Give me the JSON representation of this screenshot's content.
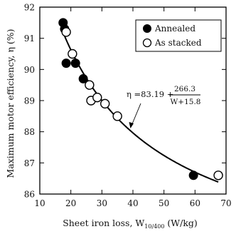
{
  "chart_data": {
    "type": "scatter",
    "xlabel": "Sheet iron loss, W",
    "xlabel_subscript": "10/400",
    "xlabel_unit": " (W/kg)",
    "ylabel": "Maximum motor efficiency, η (%)",
    "xlim": [
      10,
      70
    ],
    "ylim": [
      86,
      92
    ],
    "x_ticks": [
      "10",
      "20",
      "30",
      "40",
      "50",
      "60",
      "70"
    ],
    "y_ticks": [
      "86",
      "87",
      "88",
      "89",
      "90",
      "91",
      "92"
    ],
    "legend": {
      "position": "top-right"
    },
    "series": [
      {
        "name": "Annealed",
        "marker": "filled-circle",
        "color": "#000000",
        "points": [
          {
            "x": 17.5,
            "y": 91.5
          },
          {
            "x": 18.0,
            "y": 91.3
          },
          {
            "x": 18.5,
            "y": 90.2
          },
          {
            "x": 21.5,
            "y": 90.2
          },
          {
            "x": 24.0,
            "y": 89.7
          },
          {
            "x": 59.5,
            "y": 86.6
          }
        ]
      },
      {
        "name": "As stacked",
        "marker": "open-circle",
        "color": "#000000",
        "points": [
          {
            "x": 18.5,
            "y": 91.2
          },
          {
            "x": 20.5,
            "y": 90.5
          },
          {
            "x": 26.0,
            "y": 89.5
          },
          {
            "x": 26.5,
            "y": 89.0
          },
          {
            "x": 28.5,
            "y": 89.1
          },
          {
            "x": 31.0,
            "y": 88.9
          },
          {
            "x": 35.0,
            "y": 88.5
          },
          {
            "x": 67.5,
            "y": 86.6
          }
        ]
      }
    ],
    "fit": {
      "a": 83.19,
      "b": 266.3,
      "c": 15.8,
      "x_from": 17,
      "x_to": 67.5,
      "label_left": "η =83.19 +",
      "label_num": "266.3",
      "label_den": "W+15.8"
    }
  }
}
